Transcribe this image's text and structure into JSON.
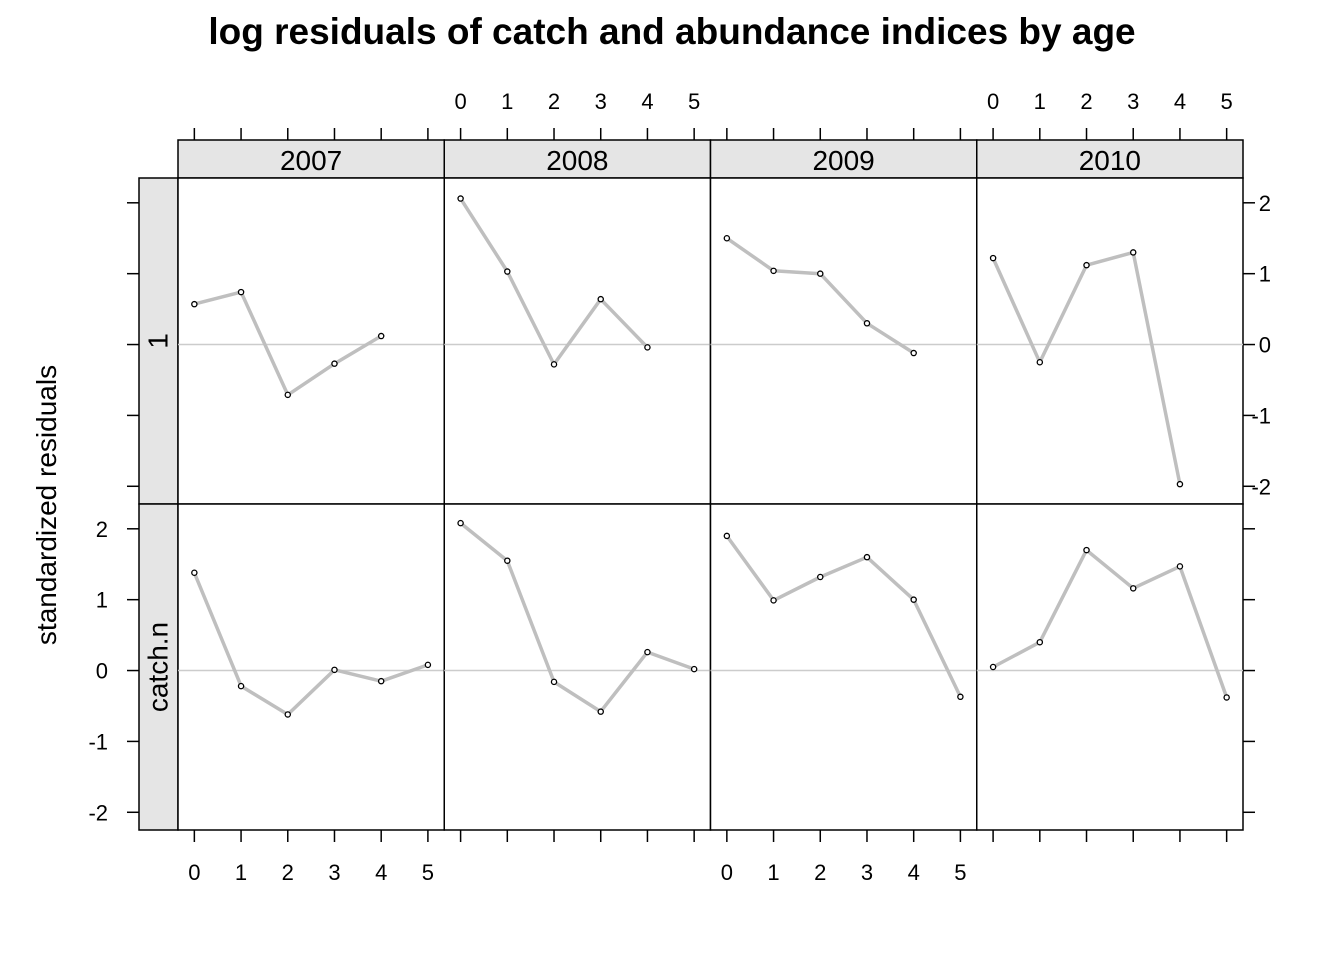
{
  "chart_data": {
    "type": "line",
    "title": "log residuals of catch and abundance indices by age",
    "xlabel": "",
    "ylabel": "standardized residuals",
    "x_ticks": [
      0,
      1,
      2,
      3,
      4,
      5
    ],
    "y_ticks": [
      -2,
      -1,
      0,
      1,
      2
    ],
    "xlim": [
      -0.35,
      5.35
    ],
    "ylim": [
      -2.25,
      2.35
    ],
    "reference_line": 0,
    "grid": false,
    "legend": "none",
    "columns": [
      "2007",
      "2008",
      "2009",
      "2010"
    ],
    "rows": [
      "1",
      "catch.n"
    ],
    "panels": [
      {
        "row": "1",
        "year": "2007",
        "x": [
          0,
          1,
          2,
          3,
          4
        ],
        "y": [
          0.57,
          0.74,
          -0.71,
          -0.27,
          0.12
        ]
      },
      {
        "row": "1",
        "year": "2008",
        "x": [
          0,
          1,
          2,
          3,
          4
        ],
        "y": [
          2.06,
          1.03,
          -0.28,
          0.64,
          -0.04
        ]
      },
      {
        "row": "1",
        "year": "2009",
        "x": [
          0,
          1,
          2,
          3,
          4
        ],
        "y": [
          1.5,
          1.04,
          1.0,
          0.3,
          -0.12
        ]
      },
      {
        "row": "1",
        "year": "2010",
        "x": [
          0,
          1,
          2,
          3,
          4
        ],
        "y": [
          1.22,
          -0.25,
          1.12,
          1.3,
          -1.97
        ]
      },
      {
        "row": "catch.n",
        "year": "2007",
        "x": [
          0,
          1,
          2,
          3,
          4,
          5
        ],
        "y": [
          1.38,
          -0.22,
          -0.62,
          0.01,
          -0.15,
          0.08
        ]
      },
      {
        "row": "catch.n",
        "year": "2008",
        "x": [
          0,
          1,
          2,
          3,
          4,
          5
        ],
        "y": [
          2.08,
          1.55,
          -0.16,
          -0.58,
          0.26,
          0.02
        ]
      },
      {
        "row": "catch.n",
        "year": "2009",
        "x": [
          0,
          1,
          2,
          3,
          4,
          5
        ],
        "y": [
          1.9,
          0.99,
          1.32,
          1.6,
          1.0,
          -0.37
        ]
      },
      {
        "row": "catch.n",
        "year": "2010",
        "x": [
          0,
          1,
          2,
          3,
          4,
          5
        ],
        "y": [
          0.05,
          0.4,
          1.7,
          1.16,
          1.47,
          -0.38
        ]
      }
    ],
    "colors": {
      "line": "#bfbfbf",
      "point": "#000000",
      "reference": "#cccccc",
      "strip": "#e5e5e5",
      "frame": "#000000"
    }
  }
}
